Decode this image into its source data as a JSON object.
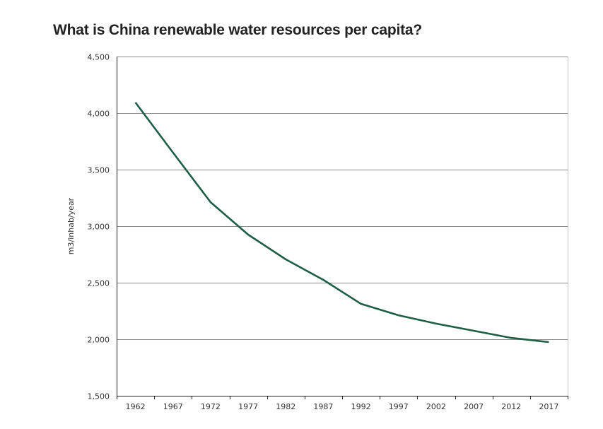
{
  "chart_data": {
    "type": "line",
    "title": "What is China renewable water resources per capita?",
    "xlabel": "",
    "ylabel": "m3/inhab/year",
    "ylim": [
      1500,
      4500
    ],
    "yticks": [
      1500,
      2000,
      2500,
      3000,
      3500,
      4000,
      4500
    ],
    "ytick_labels": [
      "1,500",
      "2,000",
      "2,500",
      "3,000",
      "3,500",
      "4,000",
      "4,500"
    ],
    "categories": [
      "1962",
      "1967",
      "1972",
      "1977",
      "1982",
      "1987",
      "1992",
      "1997",
      "2002",
      "2007",
      "2012",
      "2017"
    ],
    "grid": true,
    "series": [
      {
        "name": "China renewable water resources per capita",
        "color": "#1e5e45",
        "values": [
          4094,
          3650,
          3212,
          2925,
          2706,
          2525,
          2313,
          2212,
          2138,
          2075,
          2012,
          1975
        ]
      }
    ]
  }
}
